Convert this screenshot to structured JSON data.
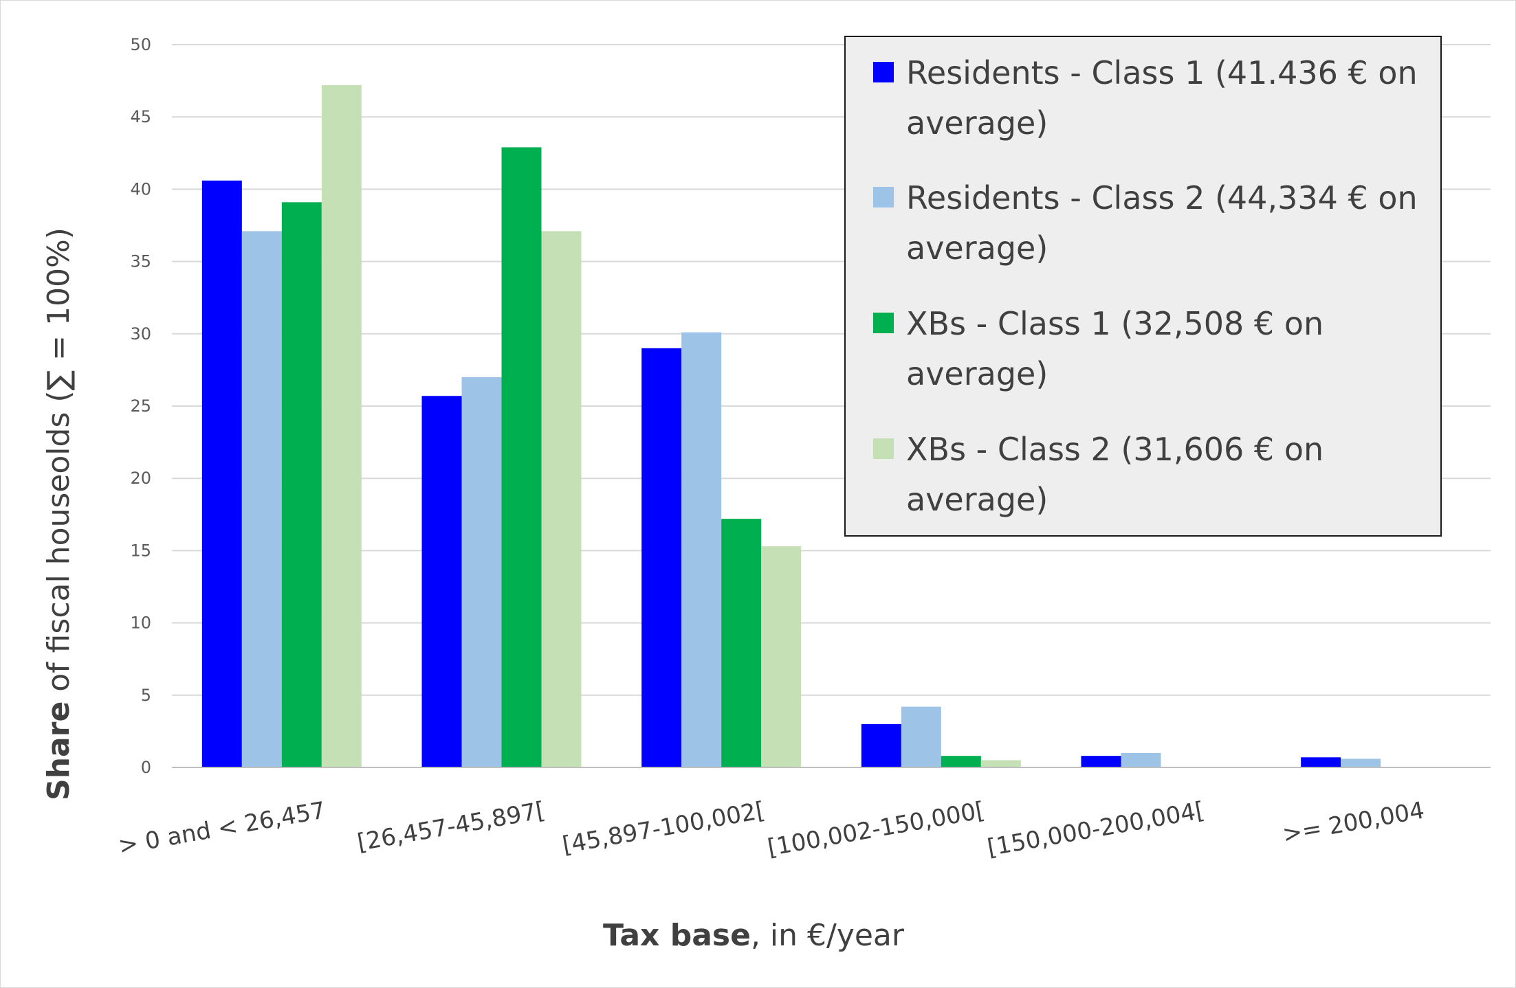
{
  "chart_data": {
    "type": "bar",
    "categories": [
      "> 0 and < 26,457",
      "[26,457-45,897[",
      "[45,897-100,002[",
      "[100,002-150,000[",
      "[150,000-200,004[",
      ">= 200,004"
    ],
    "series": [
      {
        "name_line1": "Residents - Class 1 (41.436 € on",
        "name_line2": "average)",
        "color": "#0000ff",
        "values": [
          40.6,
          25.7,
          29.0,
          3.0,
          0.8,
          0.7
        ]
      },
      {
        "name_line1": "Residents - Class 2 (44,334 € on",
        "name_line2": "average)",
        "color": "#9dc3e6",
        "values": [
          37.1,
          27.0,
          30.1,
          4.2,
          1.0,
          0.6
        ]
      },
      {
        "name_line1": "XBs - Class 1 (32,508 € on",
        "name_line2": "average)",
        "color": "#00b050",
        "values": [
          39.1,
          42.9,
          17.2,
          0.8,
          0,
          0
        ]
      },
      {
        "name_line1": "XBs - Class 2 (31,606 € on",
        "name_line2": "average)",
        "color": "#c5e0b4",
        "values": [
          47.2,
          37.1,
          15.3,
          0.5,
          0,
          0
        ]
      }
    ],
    "ylim": [
      0,
      50
    ],
    "yticks": [
      "0",
      "5",
      "10",
      "15",
      "20",
      "25",
      "30",
      "35",
      "40",
      "45",
      "50"
    ],
    "ylabel_bold": "Share",
    "ylabel_rest": " of fiscal houseolds  (∑ = 100%)",
    "xlabel_bold": "Tax base",
    "xlabel_rest": ", in €/year",
    "grid": true,
    "legend_position": "top-right"
  }
}
